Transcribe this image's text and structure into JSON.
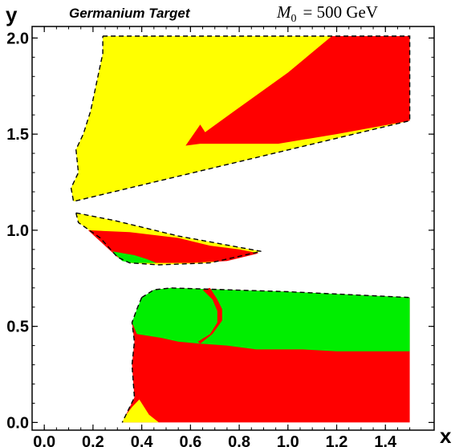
{
  "chart_data": {
    "type": "area",
    "title_left": "Germanium Target",
    "title_right_symbol": "M",
    "title_right_subscript": "0",
    "title_right_value": "= 500 GeV",
    "xlabel": "x",
    "ylabel": "y",
    "xlim": [
      -0.05,
      1.6
    ],
    "ylim": [
      -0.04,
      2.06
    ],
    "xticks": [
      0.0,
      0.2,
      0.4,
      0.6,
      0.8,
      1.0,
      1.2,
      1.4
    ],
    "xtick_labels": [
      "0.0",
      "0.2",
      "0.4",
      "0.6",
      "0.8",
      "1.0",
      "1.2",
      "1.4"
    ],
    "yticks": [
      0.0,
      0.5,
      1.0,
      1.5,
      2.0
    ],
    "ytick_labels": [
      "0.0",
      "0.5",
      "1.0",
      "1.5",
      "2.0"
    ],
    "colors": {
      "yellow": "#ffff00",
      "red": "#ff0000",
      "green": "#00ee00",
      "boundary": "#000000"
    },
    "regions": [
      {
        "id": "upper-yellow",
        "color": "yellow",
        "points": [
          [
            0.24,
            2.01
          ],
          [
            1.5,
            2.01
          ],
          [
            1.5,
            1.57
          ],
          [
            0.12,
            1.15
          ],
          [
            0.11,
            1.22
          ],
          [
            0.14,
            1.3
          ],
          [
            0.13,
            1.42
          ],
          [
            0.16,
            1.5
          ],
          [
            0.19,
            1.62
          ],
          [
            0.22,
            1.8
          ],
          [
            0.24,
            1.92
          ]
        ]
      },
      {
        "id": "upper-red",
        "color": "red",
        "points": [
          [
            0.58,
            1.44
          ],
          [
            0.64,
            1.55
          ],
          [
            0.66,
            1.51
          ],
          [
            0.78,
            1.62
          ],
          [
            1.0,
            1.82
          ],
          [
            1.18,
            2.01
          ],
          [
            1.5,
            2.01
          ],
          [
            1.5,
            1.57
          ],
          [
            1.2,
            1.5
          ],
          [
            0.96,
            1.45
          ],
          [
            0.64,
            1.45
          ]
        ]
      },
      {
        "id": "middle-yellow",
        "color": "yellow",
        "points": [
          [
            0.13,
            1.09
          ],
          [
            0.29,
            1.05
          ],
          [
            0.55,
            0.97
          ],
          [
            0.89,
            0.89
          ],
          [
            0.68,
            0.83
          ],
          [
            0.47,
            0.82
          ],
          [
            0.35,
            0.83
          ],
          [
            0.3,
            0.86
          ],
          [
            0.23,
            0.96
          ],
          [
            0.14,
            1.04
          ]
        ]
      },
      {
        "id": "middle-red",
        "color": "red",
        "points": [
          [
            0.18,
            1.0
          ],
          [
            0.35,
            0.99
          ],
          [
            0.55,
            0.96
          ],
          [
            0.68,
            0.92
          ],
          [
            0.8,
            0.9
          ],
          [
            0.88,
            0.88
          ],
          [
            0.75,
            0.84
          ],
          [
            0.6,
            0.83
          ],
          [
            0.47,
            0.83
          ],
          [
            0.36,
            0.83
          ],
          [
            0.3,
            0.86
          ],
          [
            0.24,
            0.93
          ]
        ]
      },
      {
        "id": "middle-green",
        "color": "green",
        "points": [
          [
            0.28,
            0.89
          ],
          [
            0.37,
            0.87
          ],
          [
            0.42,
            0.85
          ],
          [
            0.46,
            0.83
          ],
          [
            0.36,
            0.83
          ],
          [
            0.32,
            0.84
          ]
        ]
      },
      {
        "id": "lower-red",
        "color": "red",
        "points": [
          [
            0.36,
            0.52
          ],
          [
            0.37,
            0.42
          ],
          [
            0.36,
            0.3
          ],
          [
            0.37,
            0.13
          ],
          [
            0.32,
            0.0
          ],
          [
            1.5,
            0.0
          ],
          [
            1.5,
            0.65
          ],
          [
            1.0,
            0.68
          ],
          [
            0.52,
            0.7
          ],
          [
            0.45,
            0.69
          ],
          [
            0.39,
            0.6
          ]
        ]
      },
      {
        "id": "lower-green",
        "color": "green",
        "points": [
          [
            0.4,
            0.65
          ],
          [
            0.45,
            0.69
          ],
          [
            0.52,
            0.7
          ],
          [
            1.0,
            0.68
          ],
          [
            1.5,
            0.65
          ],
          [
            1.5,
            0.37
          ],
          [
            1.2,
            0.37
          ],
          [
            1.06,
            0.38
          ],
          [
            0.96,
            0.38
          ],
          [
            0.87,
            0.38
          ],
          [
            0.75,
            0.4
          ],
          [
            0.64,
            0.41
          ],
          [
            0.55,
            0.42
          ],
          [
            0.48,
            0.44
          ],
          [
            0.38,
            0.46
          ],
          [
            0.36,
            0.52
          ],
          [
            0.38,
            0.59
          ]
        ]
      },
      {
        "id": "lower-yellow",
        "color": "yellow",
        "points": [
          [
            0.32,
            0.0
          ],
          [
            0.47,
            0.0
          ],
          [
            0.43,
            0.04
          ],
          [
            0.39,
            0.12
          ],
          [
            0.36,
            0.08
          ],
          [
            0.33,
            0.03
          ]
        ]
      }
    ],
    "red_band": [
      [
        0.64,
        0.41
      ],
      [
        0.69,
        0.46
      ],
      [
        0.73,
        0.53
      ],
      [
        0.73,
        0.59
      ],
      [
        0.71,
        0.64
      ],
      [
        0.68,
        0.7
      ],
      [
        0.65,
        0.69
      ],
      [
        0.69,
        0.64
      ],
      [
        0.71,
        0.58
      ],
      [
        0.71,
        0.52
      ],
      [
        0.68,
        0.46
      ],
      [
        0.63,
        0.42
      ]
    ],
    "boundaries": [
      [
        [
          0.24,
          2.01
        ],
        [
          1.5,
          2.01
        ],
        [
          1.5,
          1.57
        ],
        [
          0.12,
          1.15
        ],
        [
          0.11,
          1.22
        ],
        [
          0.14,
          1.3
        ],
        [
          0.13,
          1.42
        ],
        [
          0.16,
          1.5
        ],
        [
          0.19,
          1.62
        ],
        [
          0.22,
          1.8
        ],
        [
          0.24,
          1.92
        ],
        [
          0.24,
          2.01
        ]
      ],
      [
        [
          0.13,
          1.09
        ],
        [
          0.29,
          1.05
        ],
        [
          0.55,
          0.97
        ],
        [
          0.89,
          0.89
        ],
        [
          0.68,
          0.83
        ],
        [
          0.47,
          0.82
        ],
        [
          0.35,
          0.83
        ],
        [
          0.3,
          0.86
        ],
        [
          0.23,
          0.96
        ],
        [
          0.14,
          1.04
        ],
        [
          0.13,
          1.09
        ]
      ],
      [
        [
          0.4,
          0.65
        ],
        [
          0.45,
          0.69
        ],
        [
          0.52,
          0.7
        ],
        [
          1.0,
          0.68
        ],
        [
          1.5,
          0.65
        ]
      ],
      [
        [
          0.4,
          0.65
        ],
        [
          0.38,
          0.59
        ],
        [
          0.36,
          0.52
        ],
        [
          0.37,
          0.42
        ],
        [
          0.36,
          0.3
        ],
        [
          0.37,
          0.13
        ],
        [
          0.32,
          0.0
        ]
      ]
    ]
  }
}
